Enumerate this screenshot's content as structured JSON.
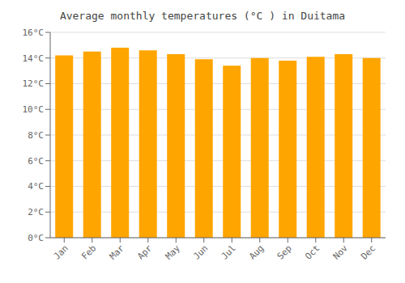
{
  "chart_data": {
    "type": "bar",
    "title": "Average monthly temperatures (°C ) in Duitama",
    "categories": [
      "Jan",
      "Feb",
      "Mar",
      "Apr",
      "May",
      "Jun",
      "Jul",
      "Aug",
      "Sep",
      "Oct",
      "Nov",
      "Dec"
    ],
    "values": [
      14.2,
      14.5,
      14.8,
      14.6,
      14.3,
      13.9,
      13.4,
      14.0,
      13.8,
      14.1,
      14.3,
      14.0
    ],
    "color": "#FFA500",
    "ylim": [
      0,
      16
    ],
    "yticks": [
      {
        "value": 0,
        "label": "0°C"
      },
      {
        "value": 2,
        "label": "2°C"
      },
      {
        "value": 4,
        "label": "4°C"
      },
      {
        "value": 6,
        "label": "6°C"
      },
      {
        "value": 8,
        "label": "8°C"
      },
      {
        "value": 10,
        "label": "10°C"
      },
      {
        "value": 12,
        "label": "12°C"
      },
      {
        "value": 14,
        "label": "14°C"
      },
      {
        "value": 16,
        "label": "16°C"
      }
    ],
    "grid": true
  }
}
